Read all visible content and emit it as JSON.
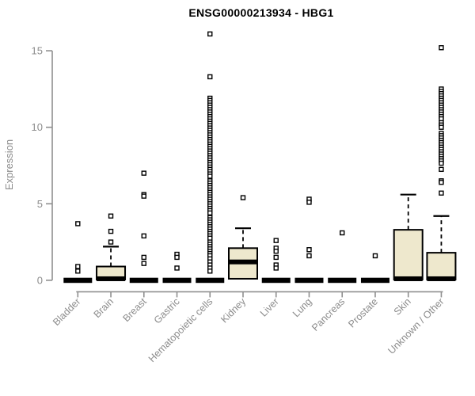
{
  "page": {
    "title": "ENSG00000213934 - HBG1"
  },
  "colors": {
    "box_fill": "#EEE8CD",
    "box_stroke": "#000000",
    "median": "#000000",
    "outlier": "#000000",
    "axis": "#8f8f8f",
    "axis_text": "#8c8c8c",
    "title_text": "#000000",
    "background": "#ffffff"
  },
  "chart_data": {
    "type": "boxplot",
    "title": "ENSG00000213934 - HBG1",
    "xlabel": "",
    "ylabel": "Expression",
    "ylim": [
      0,
      16.5
    ],
    "yticks": [
      0,
      5,
      10,
      15
    ],
    "grid": false,
    "legend": null,
    "categories": [
      "Bladder",
      "Brain",
      "Breast",
      "Gastric",
      "Hematopoietic cells",
      "Kidney",
      "Liver",
      "Lung",
      "Pancreas",
      "Prostate",
      "Skin",
      "Unknown / Other"
    ],
    "series": [
      {
        "name": "Bladder",
        "q1": 0,
        "median": 0,
        "q3": 0,
        "whisker_low": null,
        "whisker_high": null,
        "outliers": [
          3.7,
          0.9,
          0.6
        ]
      },
      {
        "name": "Brain",
        "q1": 0.05,
        "median": 0.1,
        "q3": 0.9,
        "whisker_low": null,
        "whisker_high": 2.2,
        "outliers": [
          4.2,
          3.2,
          2.5
        ]
      },
      {
        "name": "Breast",
        "q1": 0,
        "median": 0,
        "q3": 0,
        "whisker_low": null,
        "whisker_high": null,
        "outliers": [
          7.0,
          5.6,
          5.5,
          2.9,
          1.5,
          1.1
        ]
      },
      {
        "name": "Gastric",
        "q1": 0,
        "median": 0,
        "q3": 0,
        "whisker_low": null,
        "whisker_high": null,
        "outliers": [
          1.7,
          1.5,
          0.8
        ]
      },
      {
        "name": "Hematopoietic cells",
        "q1": 0,
        "median": 0,
        "q3": 0,
        "whisker_low": null,
        "whisker_high": null,
        "outliers": [
          16.1,
          13.3,
          11.9,
          11.75,
          11.6,
          11.45,
          11.3,
          11.15,
          11.0,
          10.85,
          10.7,
          10.55,
          10.4,
          10.25,
          10.1,
          9.95,
          9.8,
          9.65,
          9.5,
          9.35,
          9.2,
          9.05,
          8.9,
          8.75,
          8.6,
          8.45,
          8.3,
          8.15,
          8.0,
          7.85,
          7.7,
          7.55,
          7.4,
          7.25,
          7.1,
          6.95,
          6.8,
          6.5,
          6.35,
          6.2,
          6.05,
          5.9,
          5.75,
          5.6,
          5.45,
          5.3,
          5.15,
          5.0,
          4.85,
          4.7,
          4.55,
          4.4,
          4.1,
          3.95,
          3.8,
          3.65,
          3.5,
          3.35,
          3.2,
          3.05,
          2.9,
          2.75,
          2.5,
          2.35,
          2.2,
          2.05,
          1.9,
          1.75,
          1.6,
          1.4,
          1.2,
          1.0,
          0.8,
          0.6
        ]
      },
      {
        "name": "Kidney",
        "q1": 0.1,
        "median": 1.2,
        "q3": 2.1,
        "whisker_low": null,
        "whisker_high": 3.4,
        "outliers": [
          5.4
        ]
      },
      {
        "name": "Liver",
        "q1": 0,
        "median": 0,
        "q3": 0,
        "whisker_low": null,
        "whisker_high": null,
        "outliers": [
          2.6,
          2.1,
          1.9,
          1.5,
          1.0,
          0.8
        ]
      },
      {
        "name": "Lung",
        "q1": 0,
        "median": 0,
        "q3": 0,
        "whisker_low": null,
        "whisker_high": null,
        "outliers": [
          5.3,
          5.1,
          2.0,
          1.6
        ]
      },
      {
        "name": "Pancreas",
        "q1": 0,
        "median": 0,
        "q3": 0,
        "whisker_low": null,
        "whisker_high": null,
        "outliers": [
          3.1
        ]
      },
      {
        "name": "Prostate",
        "q1": 0,
        "median": 0,
        "q3": 0,
        "whisker_low": null,
        "whisker_high": null,
        "outliers": [
          1.6
        ]
      },
      {
        "name": "Skin",
        "q1": 0.05,
        "median": 0.1,
        "q3": 3.3,
        "whisker_low": null,
        "whisker_high": 5.6,
        "outliers": []
      },
      {
        "name": "Unknown / Other",
        "q1": 0.05,
        "median": 0.1,
        "q3": 1.8,
        "whisker_low": null,
        "whisker_high": 4.2,
        "outliers": [
          15.2,
          12.5,
          12.35,
          12.2,
          12.05,
          11.9,
          11.75,
          11.6,
          11.45,
          11.3,
          11.15,
          11.0,
          10.85,
          10.7,
          10.55,
          10.3,
          10.15,
          10.0,
          9.6,
          9.45,
          9.3,
          9.15,
          9.0,
          8.85,
          8.7,
          8.55,
          8.4,
          8.25,
          8.1,
          7.95,
          7.8,
          7.65,
          7.25,
          6.5,
          6.4,
          5.7
        ]
      }
    ]
  }
}
